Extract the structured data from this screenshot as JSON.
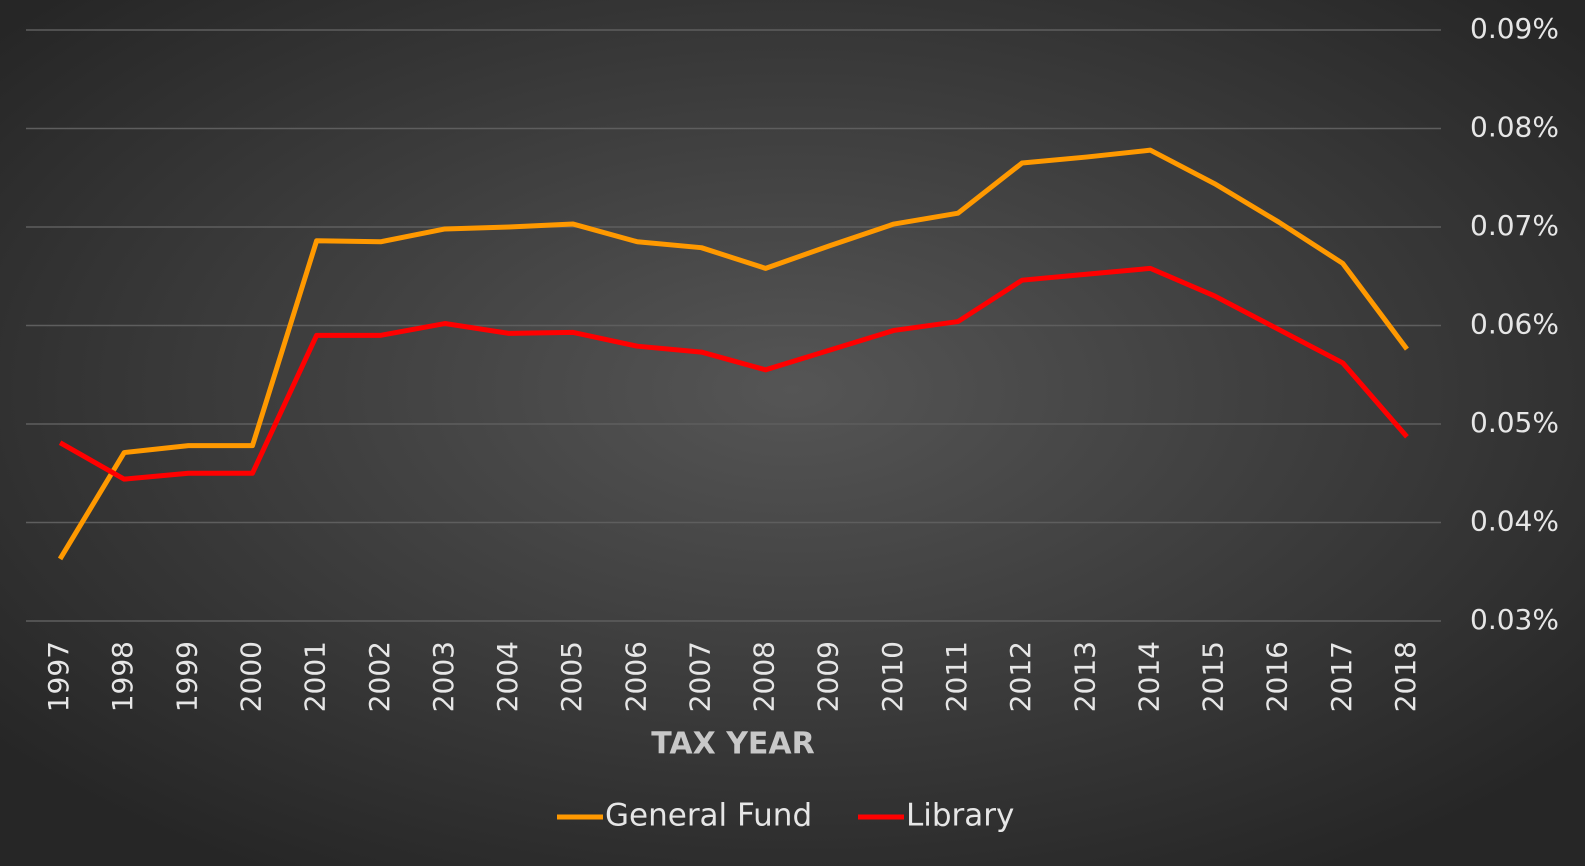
{
  "chart_data": {
    "type": "line",
    "x_label": "TAX YEAR",
    "categories": [
      "1997",
      "1998",
      "1999",
      "2000",
      "2001",
      "2002",
      "2003",
      "2004",
      "2005",
      "2006",
      "2007",
      "2008",
      "2009",
      "2010",
      "2011",
      "2012",
      "2013",
      "2014",
      "2015",
      "2016",
      "2017",
      "2018"
    ],
    "series": [
      {
        "name": "General Fund",
        "color": "#ff9900",
        "values": [
          0.0363,
          0.0471,
          0.0478,
          0.0478,
          0.0686,
          0.0685,
          0.0698,
          0.07,
          0.0703,
          0.0685,
          0.0679,
          0.0658,
          0.0681,
          0.0703,
          0.0714,
          0.0765,
          0.0771,
          0.0778,
          0.0744,
          0.0705,
          0.0663,
          0.0576
        ]
      },
      {
        "name": "Library",
        "color": "#ff0000",
        "values": [
          0.0481,
          0.0444,
          0.045,
          0.045,
          0.059,
          0.059,
          0.0602,
          0.0592,
          0.0593,
          0.0579,
          0.0573,
          0.0555,
          0.0575,
          0.0595,
          0.0604,
          0.0646,
          0.0652,
          0.0658,
          0.063,
          0.0596,
          0.0562,
          0.0487
        ]
      }
    ],
    "ylim": [
      0.03,
      0.09
    ],
    "yticks": [
      {
        "value": 0.03,
        "label": "0.03%"
      },
      {
        "value": 0.04,
        "label": "0.04%"
      },
      {
        "value": 0.05,
        "label": "0.05%"
      },
      {
        "value": 0.06,
        "label": "0.06%"
      },
      {
        "value": 0.07,
        "label": "0.07%"
      },
      {
        "value": 0.08,
        "label": "0.08%"
      },
      {
        "value": 0.09,
        "label": "0.09%"
      }
    ],
    "grid": true,
    "legend": "bottom"
  }
}
